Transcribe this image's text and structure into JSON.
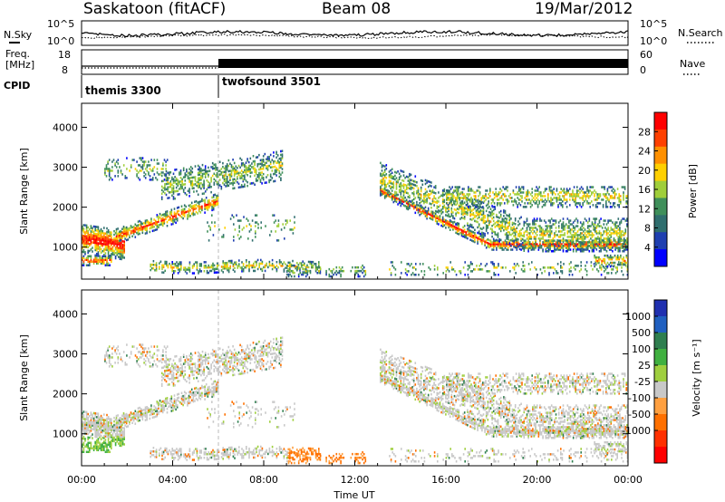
{
  "header": {
    "title": "Saskatoon (fitACF)",
    "beam": "Beam 08",
    "date": "19/Mar/2012"
  },
  "noise_panel": {
    "left_label": "N.Sky",
    "right_label": "N.Search",
    "left_ticks": [
      "10^5",
      "10^0"
    ],
    "right_ticks": [
      "10^5",
      "10^0"
    ]
  },
  "freq_panel": {
    "left_label_line1": "Freq.",
    "left_label_line2": "[MHz]",
    "right_label": "Nave",
    "left_ticks": [
      "18",
      "8"
    ],
    "right_ticks": [
      "60",
      "0"
    ]
  },
  "cpid": {
    "label": "CPID",
    "modes": [
      {
        "name": "themis 3300",
        "start": 0.0,
        "end": 6.0
      },
      {
        "name": "twofsound 3501",
        "start": 6.0,
        "end": 24.0
      }
    ]
  },
  "colors": {
    "power_scale": [
      "#0000ff",
      "#1f3fb0",
      "#2f6e6e",
      "#3f8f5a",
      "#9fce3a",
      "#ffd000",
      "#ff9000",
      "#ff4000",
      "#ff0000"
    ],
    "velocity_scale": [
      "#2030b0",
      "#2060c0",
      "#2f7f4f",
      "#40b040",
      "#9fcf3f",
      "#c8c8c8",
      "#ffa040",
      "#ff7000",
      "#ff3000",
      "#ff0000"
    ]
  },
  "chart_data": [
    {
      "type": "heatmap",
      "name": "power",
      "ylabel": "Slant Range [km]",
      "xlabel": "",
      "yticks": [
        "1000",
        "2000",
        "3000",
        "4000"
      ],
      "ylim": [
        200,
        4600
      ],
      "xlim": [
        0,
        24
      ],
      "colorbar_label": "Power [dB]",
      "colorbar_ticks": [
        "4",
        "8",
        "12",
        "16",
        "20",
        "24",
        "28"
      ],
      "colorbar_range": [
        0,
        32
      ]
    },
    {
      "type": "heatmap",
      "name": "velocity",
      "ylabel": "Slant Range [km]",
      "xlabel": "Time UT",
      "yticks": [
        "1000",
        "2000",
        "3000",
        "4000"
      ],
      "ylim": [
        200,
        4600
      ],
      "xlim": [
        0,
        24
      ],
      "colorbar_label": "Velocity [m s⁻¹]",
      "colorbar_ticks": [
        "1000",
        "500",
        "100",
        "25",
        "-25",
        "-100",
        "-500",
        "-1000"
      ]
    }
  ],
  "time_axis": {
    "ticks": [
      "00:00",
      "04:00",
      "08:00",
      "12:00",
      "16:00",
      "20:00",
      "00:00"
    ],
    "label": "Time UT"
  }
}
